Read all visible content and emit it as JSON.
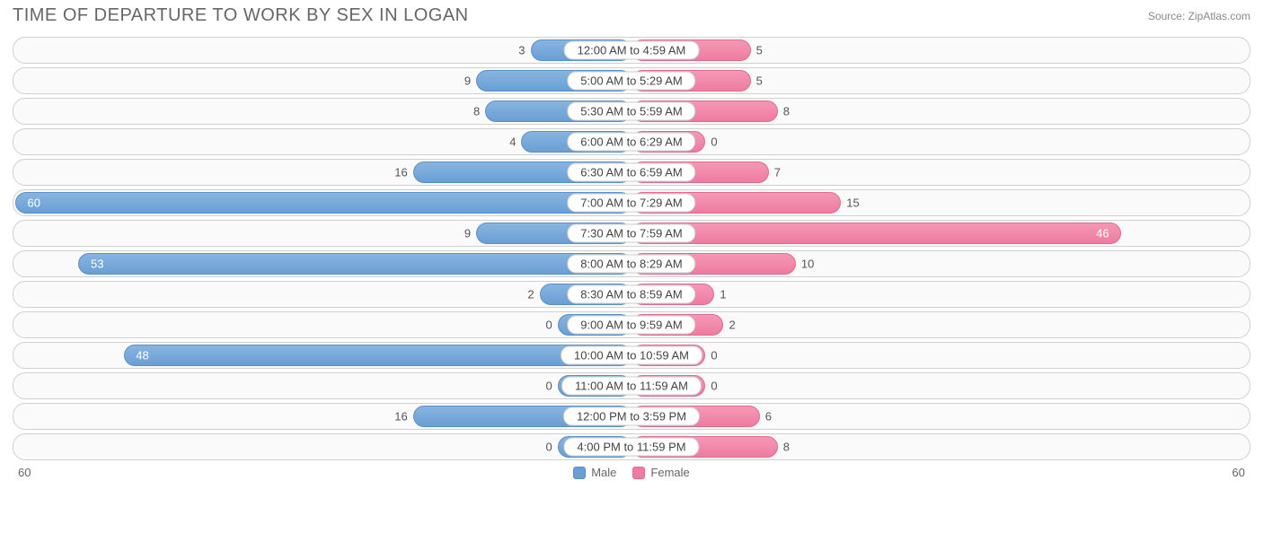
{
  "title": "TIME OF DEPARTURE TO WORK BY SEX IN LOGAN",
  "source": "Source: ZipAtlas.com",
  "chart": {
    "type": "diverging-bar",
    "max_value": 60,
    "axis_left": "60",
    "axis_right": "60",
    "male_color": "#6a9fd4",
    "male_border": "#5a8fc4",
    "female_color": "#ee7ba0",
    "female_border": "#e06a90",
    "track_bg": "#fafafa",
    "track_border": "#d0d0d0",
    "min_bar_width_pct": 12,
    "label_color": "#555",
    "label_inside_color": "#ffffff",
    "center_label_bg": "#ffffff",
    "center_label_border": "#cccccc",
    "font_size_label": 13,
    "rows": [
      {
        "label": "12:00 AM to 4:59 AM",
        "male": 3,
        "female": 5
      },
      {
        "label": "5:00 AM to 5:29 AM",
        "male": 9,
        "female": 5
      },
      {
        "label": "5:30 AM to 5:59 AM",
        "male": 8,
        "female": 8
      },
      {
        "label": "6:00 AM to 6:29 AM",
        "male": 4,
        "female": 0
      },
      {
        "label": "6:30 AM to 6:59 AM",
        "male": 16,
        "female": 7
      },
      {
        "label": "7:00 AM to 7:29 AM",
        "male": 60,
        "female": 15
      },
      {
        "label": "7:30 AM to 7:59 AM",
        "male": 9,
        "female": 46
      },
      {
        "label": "8:00 AM to 8:29 AM",
        "male": 53,
        "female": 10
      },
      {
        "label": "8:30 AM to 8:59 AM",
        "male": 2,
        "female": 1
      },
      {
        "label": "9:00 AM to 9:59 AM",
        "male": 0,
        "female": 2
      },
      {
        "label": "10:00 AM to 10:59 AM",
        "male": 48,
        "female": 0
      },
      {
        "label": "11:00 AM to 11:59 AM",
        "male": 0,
        "female": 0
      },
      {
        "label": "12:00 PM to 3:59 PM",
        "male": 16,
        "female": 6
      },
      {
        "label": "4:00 PM to 11:59 PM",
        "male": 0,
        "female": 8
      }
    ]
  },
  "legend": {
    "male": "Male",
    "female": "Female"
  }
}
